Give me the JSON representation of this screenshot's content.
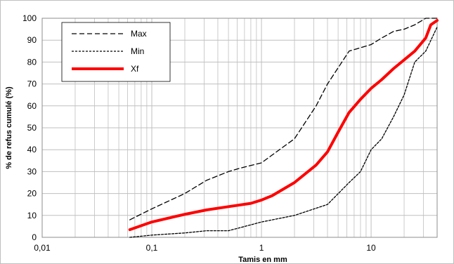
{
  "chart_data": {
    "type": "line",
    "xscale": "log",
    "xlim": [
      0.01,
      40
    ],
    "ylim": [
      0,
      100
    ],
    "xticks": [
      0.01,
      0.1,
      1,
      10
    ],
    "xtick_labels": [
      "0,01",
      "0,1",
      "1",
      "10"
    ],
    "yticks": [
      0,
      10,
      20,
      30,
      40,
      50,
      60,
      70,
      80,
      90,
      100
    ],
    "xlabel": "Tamis en mm",
    "ylabel": "% de refus cumulé (%)",
    "grid": true,
    "legend_position": "top-left",
    "series": [
      {
        "name": "Max",
        "style": "long-dash",
        "color": "#000000",
        "points": [
          [
            0.063,
            8
          ],
          [
            0.1,
            13
          ],
          [
            0.2,
            20
          ],
          [
            0.315,
            26
          ],
          [
            0.5,
            30
          ],
          [
            0.63,
            31.5
          ],
          [
            1,
            34
          ],
          [
            2,
            45
          ],
          [
            3.15,
            60
          ],
          [
            4,
            70
          ],
          [
            6.3,
            85
          ],
          [
            10,
            88
          ],
          [
            12.5,
            91
          ],
          [
            16,
            94
          ],
          [
            20,
            95
          ],
          [
            25,
            97
          ],
          [
            31.5,
            100
          ],
          [
            40,
            100
          ]
        ]
      },
      {
        "name": "Min",
        "style": "short-dash",
        "color": "#000000",
        "points": [
          [
            0.063,
            0
          ],
          [
            0.1,
            1
          ],
          [
            0.2,
            2
          ],
          [
            0.315,
            3
          ],
          [
            0.5,
            3
          ],
          [
            1,
            7
          ],
          [
            2,
            10
          ],
          [
            4,
            15
          ],
          [
            6.3,
            25
          ],
          [
            8,
            30
          ],
          [
            10,
            40
          ],
          [
            12.5,
            45
          ],
          [
            16,
            55
          ],
          [
            20,
            65
          ],
          [
            25,
            80
          ],
          [
            31.5,
            85
          ],
          [
            40,
            96
          ]
        ]
      },
      {
        "name": "Xf",
        "style": "solid",
        "color": "#ff0000",
        "points": [
          [
            0.063,
            3.5
          ],
          [
            0.1,
            7
          ],
          [
            0.2,
            10.5
          ],
          [
            0.315,
            12.5
          ],
          [
            0.5,
            14
          ],
          [
            0.8,
            15.5
          ],
          [
            1,
            17
          ],
          [
            1.25,
            19
          ],
          [
            2,
            25
          ],
          [
            3.15,
            33
          ],
          [
            4,
            39
          ],
          [
            5,
            48
          ],
          [
            6.3,
            57
          ],
          [
            8,
            63
          ],
          [
            10,
            68
          ],
          [
            12.5,
            72
          ],
          [
            16,
            77
          ],
          [
            20,
            81
          ],
          [
            25,
            85
          ],
          [
            31.5,
            91
          ],
          [
            35,
            97
          ],
          [
            40,
            99
          ]
        ]
      }
    ]
  }
}
